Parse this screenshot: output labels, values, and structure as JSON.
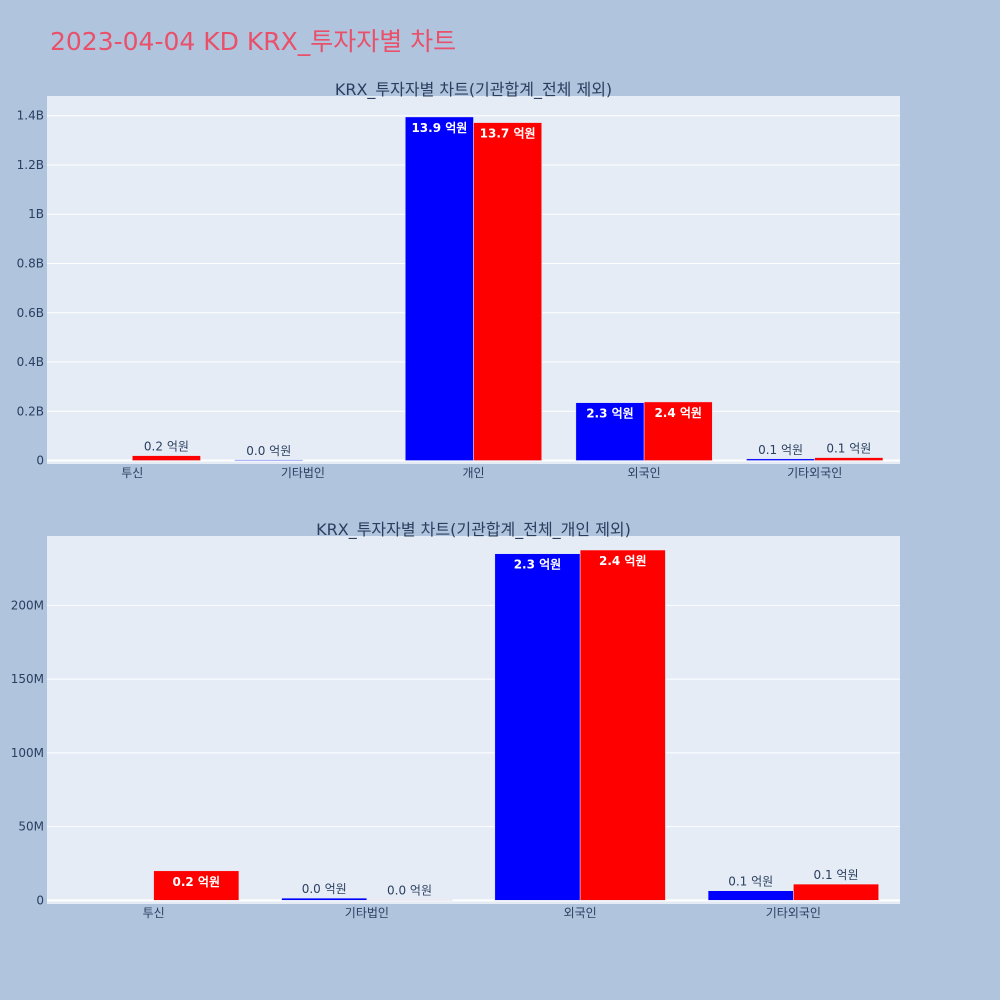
{
  "page_title": "2023-04-04 KD KRX_투자자별 차트",
  "colors": {
    "background": "#b0c4de",
    "plot_bg": "#e5ecf6",
    "grid": "#ffffff",
    "title": "#e9506a",
    "text": "#2a3f5f",
    "series_a": "#0000ff",
    "series_b": "#ff0000"
  },
  "chart_data": [
    {
      "type": "bar",
      "title": "KRX_투자자별 차트(기관합계_전체 제외)",
      "categories": [
        "투신",
        "기타법인",
        "개인",
        "외국인",
        "기타외국인"
      ],
      "yticks": [
        0,
        200000000,
        400000000,
        600000000,
        800000000,
        1000000000,
        1200000000,
        1400000000
      ],
      "ytick_labels": [
        "0",
        "0.2B",
        "0.4B",
        "0.6B",
        "0.8B",
        "1B",
        "1.2B",
        "1.4B"
      ],
      "ylim": [
        -14000000,
        1480000000
      ],
      "grid": true,
      "series": [
        {
          "values": [
            null,
            3000000,
            1395000000,
            235000000,
            7000000
          ],
          "labels": [
            "",
            "0.0 억원",
            "13.9 억원",
            "2.3 억원",
            "0.1 억원"
          ],
          "color": "#0000ff"
        },
        {
          "values": [
            20000000,
            null,
            1372000000,
            238000000,
            12000000
          ],
          "labels": [
            "0.2 억원",
            "",
            "13.7 억원",
            "2.4 억원",
            "0.1 억원"
          ],
          "color": "#ff0000"
        }
      ]
    },
    {
      "type": "bar",
      "title": "KRX_투자자별 차트(기관합계_전체_개인 제외)",
      "categories": [
        "투신",
        "기타법인",
        "외국인",
        "기타외국인"
      ],
      "yticks": [
        0,
        50000000,
        100000000,
        150000000,
        200000000
      ],
      "ytick_labels": [
        "0",
        "50M",
        "100M",
        "150M",
        "200M"
      ],
      "ylim": [
        -2500000,
        247000000
      ],
      "grid": true,
      "series": [
        {
          "values": [
            null,
            1500000,
            235000000,
            6500000
          ],
          "labels": [
            "",
            "0.0 억원",
            "2.3 억원",
            "0.1 억원"
          ],
          "color": "#0000ff"
        },
        {
          "values": [
            20000000,
            400000,
            237500000,
            11000000
          ],
          "labels": [
            "0.2 억원",
            "0.0 억원",
            "2.4 억원",
            "0.1 억원"
          ],
          "color": "#ff0000"
        }
      ]
    }
  ]
}
